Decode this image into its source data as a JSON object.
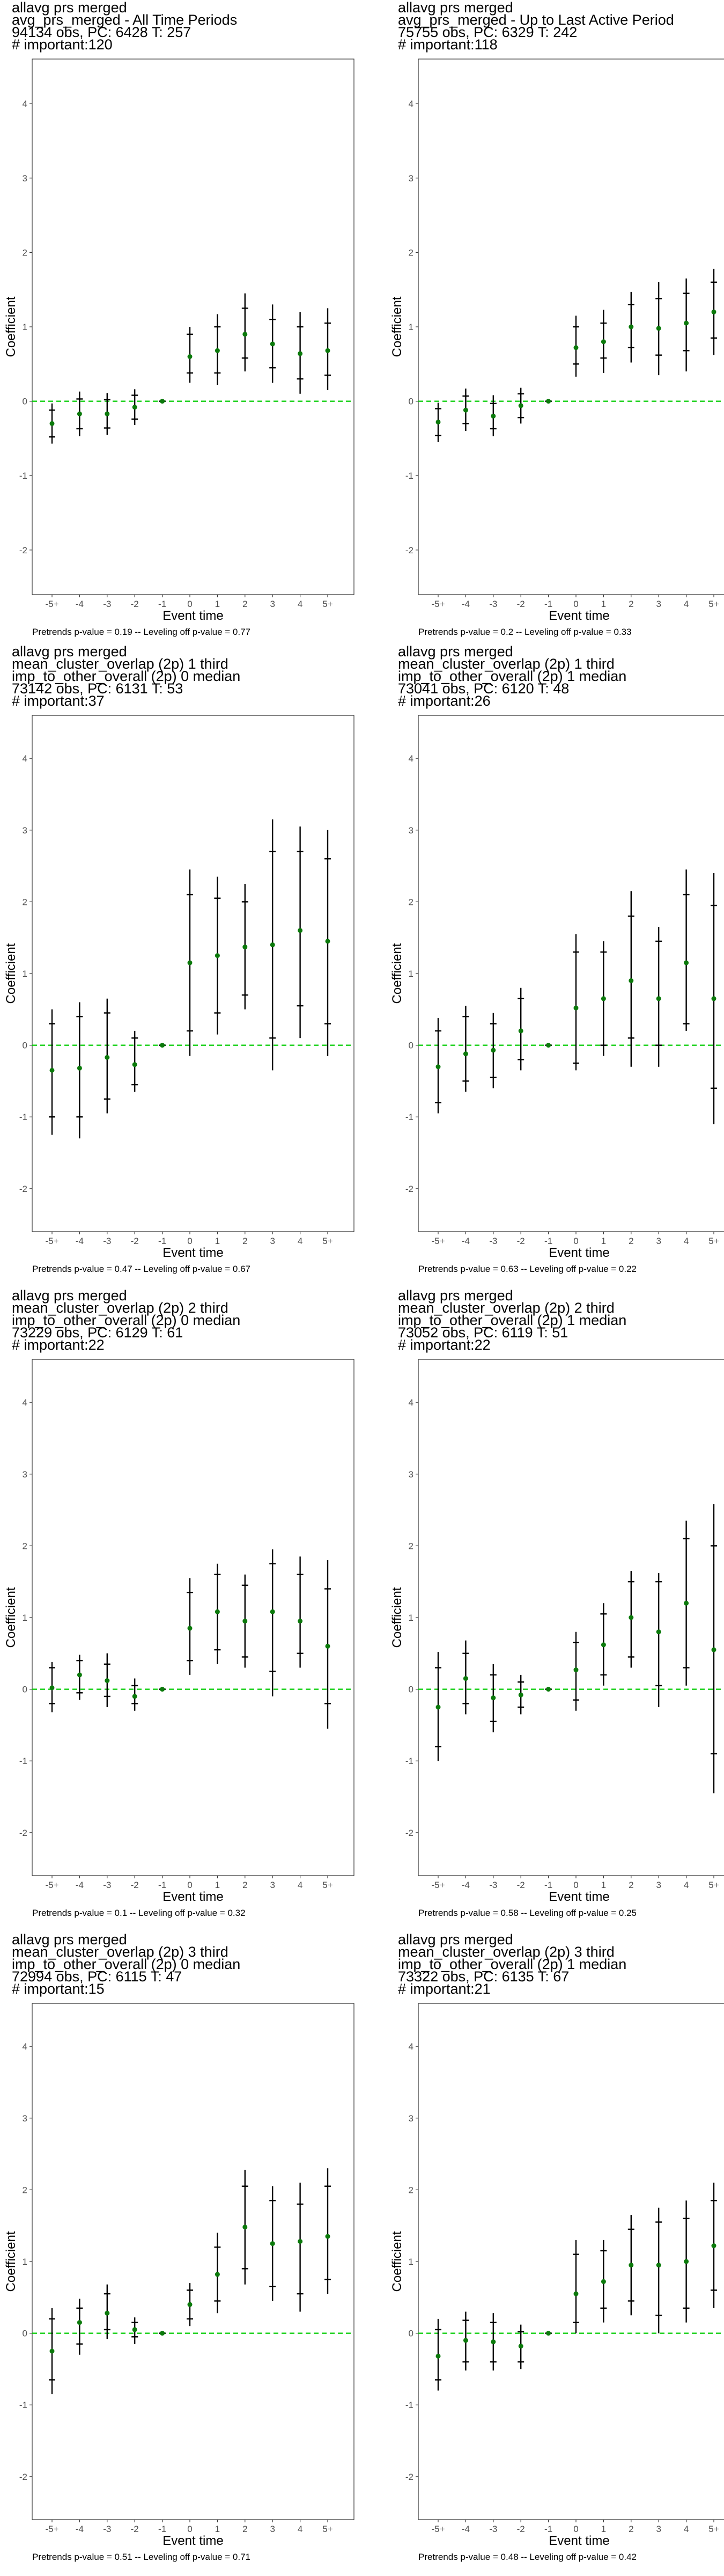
{
  "chart_data": [
    {
      "type": "scatter",
      "title": [
        "allavg prs merged",
        "avg_prs_merged - All Time Periods",
        "94134 obs, PC: 6428 T: 257",
        "# important:120"
      ],
      "caption": "Pretrends p-value = 0.19 -- Leveling off p-value = 0.77",
      "xlabel": "Event time",
      "ylabel": "Coefficient",
      "ylim": [
        -2.6,
        4.6
      ],
      "yticks": [
        -2,
        -1,
        0,
        1,
        2,
        3,
        4
      ],
      "categories": [
        "-5+",
        "-4",
        "-3",
        "-2",
        "-1",
        "0",
        "1",
        "2",
        "3",
        "4",
        "5+"
      ],
      "reference_line": 0,
      "reference_color": "#00cc00",
      "point_color": "#0b7a0b",
      "values": [
        -0.3,
        -0.17,
        -0.17,
        -0.08,
        0.0,
        0.6,
        0.68,
        0.9,
        0.77,
        0.64,
        0.68
      ],
      "ci_outer": [
        [
          -0.57,
          -0.03
        ],
        [
          -0.47,
          0.13
        ],
        [
          -0.45,
          0.11
        ],
        [
          -0.32,
          0.16
        ],
        [
          0,
          0
        ],
        [
          0.25,
          1.0
        ],
        [
          0.22,
          1.17
        ],
        [
          0.4,
          1.45
        ],
        [
          0.25,
          1.3
        ],
        [
          0.1,
          1.2
        ],
        [
          0.15,
          1.25
        ]
      ],
      "ci_inner": [
        [
          -0.48,
          -0.12
        ],
        [
          -0.37,
          0.03
        ],
        [
          -0.36,
          0.02
        ],
        [
          -0.24,
          0.08
        ],
        [
          0,
          0
        ],
        [
          0.38,
          0.9
        ],
        [
          0.38,
          1.0
        ],
        [
          0.58,
          1.25
        ],
        [
          0.45,
          1.1
        ],
        [
          0.3,
          1.0
        ],
        [
          0.35,
          1.05
        ]
      ]
    },
    {
      "type": "scatter",
      "title": [
        "allavg prs merged",
        "avg_prs_merged - Up to Last Active Period",
        "75755 obs, PC: 6329 T: 242",
        "# important:118"
      ],
      "caption": "Pretrends p-value = 0.2 -- Leveling off p-value = 0.33",
      "xlabel": "Event time",
      "ylabel": "Coefficient",
      "ylim": [
        -2.6,
        4.6
      ],
      "yticks": [
        -2,
        -1,
        0,
        1,
        2,
        3,
        4
      ],
      "categories": [
        "-5+",
        "-4",
        "-3",
        "-2",
        "-1",
        "0",
        "1",
        "2",
        "3",
        "4",
        "5+"
      ],
      "reference_line": 0,
      "reference_color": "#00cc00",
      "point_color": "#0b7a0b",
      "values": [
        -0.28,
        -0.12,
        -0.2,
        -0.06,
        0.0,
        0.72,
        0.8,
        1.0,
        0.98,
        1.05,
        1.2
      ],
      "ci_outer": [
        [
          -0.55,
          -0.02
        ],
        [
          -0.4,
          0.17
        ],
        [
          -0.47,
          0.08
        ],
        [
          -0.3,
          0.18
        ],
        [
          0,
          0
        ],
        [
          0.33,
          1.15
        ],
        [
          0.38,
          1.23
        ],
        [
          0.52,
          1.47
        ],
        [
          0.35,
          1.6
        ],
        [
          0.4,
          1.65
        ],
        [
          0.62,
          1.78
        ]
      ],
      "ci_inner": [
        [
          -0.46,
          -0.1
        ],
        [
          -0.3,
          0.07
        ],
        [
          -0.37,
          -0.03
        ],
        [
          -0.22,
          0.1
        ],
        [
          0,
          0
        ],
        [
          0.5,
          1.0
        ],
        [
          0.58,
          1.05
        ],
        [
          0.72,
          1.3
        ],
        [
          0.62,
          1.38
        ],
        [
          0.68,
          1.45
        ],
        [
          0.85,
          1.6
        ]
      ]
    },
    {
      "type": "scatter",
      "title": [
        "allavg prs merged",
        "mean_cluster_overlap (2p) 1 third",
        "imp_to_other_overall (2p) 0 median",
        "73142 obs, PC: 6131 T: 53",
        "# important:37"
      ],
      "caption": "Pretrends p-value = 0.47 -- Leveling off p-value = 0.67",
      "xlabel": "Event time",
      "ylabel": "Coefficient",
      "ylim": [
        -2.6,
        4.6
      ],
      "yticks": [
        -2,
        -1,
        0,
        1,
        2,
        3,
        4
      ],
      "categories": [
        "-5+",
        "-4",
        "-3",
        "-2",
        "-1",
        "0",
        "1",
        "2",
        "3",
        "4",
        "5+"
      ],
      "reference_line": 0,
      "reference_color": "#00cc00",
      "point_color": "#0b7a0b",
      "values": [
        -0.35,
        -0.32,
        -0.17,
        -0.27,
        0.0,
        1.15,
        1.25,
        1.37,
        1.4,
        1.6,
        1.45
      ],
      "ci_outer": [
        [
          -1.25,
          0.5
        ],
        [
          -1.3,
          0.6
        ],
        [
          -0.95,
          0.65
        ],
        [
          -0.65,
          0.2
        ],
        [
          0,
          0
        ],
        [
          -0.15,
          2.45
        ],
        [
          0.15,
          2.35
        ],
        [
          0.5,
          2.25
        ],
        [
          -0.35,
          3.15
        ],
        [
          0.1,
          3.05
        ],
        [
          -0.15,
          3.0
        ]
      ],
      "ci_inner": [
        [
          -1.0,
          0.3
        ],
        [
          -1.0,
          0.4
        ],
        [
          -0.75,
          0.45
        ],
        [
          -0.55,
          0.1
        ],
        [
          0,
          0
        ],
        [
          0.2,
          2.1
        ],
        [
          0.45,
          2.05
        ],
        [
          0.7,
          2.0
        ],
        [
          0.1,
          2.7
        ],
        [
          0.55,
          2.7
        ],
        [
          0.3,
          2.6
        ]
      ]
    },
    {
      "type": "scatter",
      "title": [
        "allavg prs merged",
        "mean_cluster_overlap (2p) 1 third",
        "imp_to_other_overall (2p) 1 median",
        "73041 obs, PC: 6120 T: 48",
        "# important:26"
      ],
      "caption": "Pretrends p-value = 0.63 -- Leveling off p-value = 0.22",
      "xlabel": "Event time",
      "ylabel": "Coefficient",
      "ylim": [
        -2.6,
        4.6
      ],
      "yticks": [
        -2,
        -1,
        0,
        1,
        2,
        3,
        4
      ],
      "categories": [
        "-5+",
        "-4",
        "-3",
        "-2",
        "-1",
        "0",
        "1",
        "2",
        "3",
        "4",
        "5+"
      ],
      "reference_line": 0,
      "reference_color": "#00cc00",
      "point_color": "#0b7a0b",
      "values": [
        -0.3,
        -0.12,
        -0.07,
        0.2,
        0.0,
        0.52,
        0.65,
        0.9,
        0.65,
        1.15,
        0.65
      ],
      "ci_outer": [
        [
          -0.95,
          0.38
        ],
        [
          -0.65,
          0.55
        ],
        [
          -0.6,
          0.45
        ],
        [
          -0.35,
          0.8
        ],
        [
          0,
          0
        ],
        [
          -0.35,
          1.55
        ],
        [
          -0.15,
          1.45
        ],
        [
          -0.3,
          2.15
        ],
        [
          -0.3,
          1.65
        ],
        [
          0.2,
          2.45
        ],
        [
          -1.1,
          2.4
        ]
      ],
      "ci_inner": [
        [
          -0.8,
          0.2
        ],
        [
          -0.5,
          0.4
        ],
        [
          -0.45,
          0.3
        ],
        [
          -0.2,
          0.65
        ],
        [
          0,
          0
        ],
        [
          -0.25,
          1.3
        ],
        [
          0.0,
          1.3
        ],
        [
          0.1,
          1.8
        ],
        [
          0.0,
          1.45
        ],
        [
          0.3,
          2.1
        ],
        [
          -0.6,
          1.95
        ]
      ]
    },
    {
      "type": "scatter",
      "title": [
        "allavg prs merged",
        "mean_cluster_overlap (2p) 2 third",
        "imp_to_other_overall (2p) 0 median",
        "73229 obs, PC: 6129 T: 61",
        "# important:22"
      ],
      "caption": "Pretrends p-value = 0.1 -- Leveling off p-value = 0.32",
      "xlabel": "Event time",
      "ylabel": "Coefficient",
      "ylim": [
        -2.6,
        4.6
      ],
      "yticks": [
        -2,
        -1,
        0,
        1,
        2,
        3,
        4
      ],
      "categories": [
        "-5+",
        "-4",
        "-3",
        "-2",
        "-1",
        "0",
        "1",
        "2",
        "3",
        "4",
        "5+"
      ],
      "reference_line": 0,
      "reference_color": "#00cc00",
      "point_color": "#0b7a0b",
      "values": [
        0.02,
        0.2,
        0.12,
        -0.1,
        0.0,
        0.85,
        1.08,
        0.95,
        1.08,
        0.95,
        0.6
      ],
      "ci_outer": [
        [
          -0.32,
          0.38
        ],
        [
          -0.15,
          0.48
        ],
        [
          -0.25,
          0.5
        ],
        [
          -0.3,
          0.15
        ],
        [
          0,
          0
        ],
        [
          0.2,
          1.55
        ],
        [
          0.35,
          1.75
        ],
        [
          0.3,
          1.6
        ],
        [
          -0.1,
          1.95
        ],
        [
          0.3,
          1.85
        ],
        [
          -0.55,
          1.8
        ]
      ],
      "ci_inner": [
        [
          -0.2,
          0.3
        ],
        [
          -0.05,
          0.4
        ],
        [
          -0.1,
          0.35
        ],
        [
          -0.2,
          0.05
        ],
        [
          0,
          0
        ],
        [
          0.4,
          1.35
        ],
        [
          0.55,
          1.6
        ],
        [
          0.45,
          1.45
        ],
        [
          0.25,
          1.75
        ],
        [
          0.5,
          1.6
        ],
        [
          -0.2,
          1.4
        ]
      ]
    },
    {
      "type": "scatter",
      "title": [
        "allavg prs merged",
        "mean_cluster_overlap (2p) 2 third",
        "imp_to_other_overall (2p) 1 median",
        "73052 obs, PC: 6119 T: 51",
        "# important:22"
      ],
      "caption": "Pretrends p-value = 0.58 -- Leveling off p-value = 0.25",
      "xlabel": "Event time",
      "ylabel": "Coefficient",
      "ylim": [
        -2.6,
        4.6
      ],
      "yticks": [
        -2,
        -1,
        0,
        1,
        2,
        3,
        4
      ],
      "categories": [
        "-5+",
        "-4",
        "-3",
        "-2",
        "-1",
        "0",
        "1",
        "2",
        "3",
        "4",
        "5+"
      ],
      "reference_line": 0,
      "reference_color": "#00cc00",
      "point_color": "#0b7a0b",
      "values": [
        -0.25,
        0.15,
        -0.12,
        -0.08,
        0.0,
        0.27,
        0.62,
        1.0,
        0.8,
        1.2,
        0.55
      ],
      "ci_outer": [
        [
          -1.0,
          0.52
        ],
        [
          -0.35,
          0.68
        ],
        [
          -0.6,
          0.35
        ],
        [
          -0.35,
          0.2
        ],
        [
          0,
          0
        ],
        [
          -0.3,
          0.8
        ],
        [
          0.05,
          1.2
        ],
        [
          0.3,
          1.65
        ],
        [
          -0.25,
          1.62
        ],
        [
          0.05,
          2.35
        ],
        [
          -1.45,
          2.58
        ]
      ],
      "ci_inner": [
        [
          -0.8,
          0.3
        ],
        [
          -0.2,
          0.5
        ],
        [
          -0.45,
          0.2
        ],
        [
          -0.25,
          0.1
        ],
        [
          0,
          0
        ],
        [
          -0.15,
          0.65
        ],
        [
          0.2,
          1.05
        ],
        [
          0.45,
          1.5
        ],
        [
          0.05,
          1.5
        ],
        [
          0.3,
          2.1
        ],
        [
          -0.9,
          2.0
        ]
      ]
    },
    {
      "type": "scatter",
      "title": [
        "allavg prs merged",
        "mean_cluster_overlap (2p) 3 third",
        "imp_to_other_overall (2p) 0 median",
        "72994 obs, PC: 6115 T: 47",
        "# important:15"
      ],
      "caption": "Pretrends p-value = 0.51 -- Leveling off p-value = 0.71",
      "xlabel": "Event time",
      "ylabel": "Coefficient",
      "ylim": [
        -2.6,
        4.6
      ],
      "yticks": [
        -2,
        -1,
        0,
        1,
        2,
        3,
        4
      ],
      "categories": [
        "-5+",
        "-4",
        "-3",
        "-2",
        "-1",
        "0",
        "1",
        "2",
        "3",
        "4",
        "5+"
      ],
      "reference_line": 0,
      "reference_color": "#00cc00",
      "point_color": "#0b7a0b",
      "values": [
        -0.25,
        0.15,
        0.28,
        0.05,
        0.0,
        0.4,
        0.82,
        1.48,
        1.25,
        1.28,
        1.35
      ],
      "ci_outer": [
        [
          -0.85,
          0.35
        ],
        [
          -0.3,
          0.48
        ],
        [
          -0.08,
          0.68
        ],
        [
          -0.15,
          0.22
        ],
        [
          0,
          0
        ],
        [
          0.1,
          0.7
        ],
        [
          0.28,
          1.4
        ],
        [
          0.68,
          2.28
        ],
        [
          0.45,
          2.05
        ],
        [
          0.3,
          2.1
        ],
        [
          0.55,
          2.3
        ]
      ],
      "ci_inner": [
        [
          -0.65,
          0.2
        ],
        [
          -0.15,
          0.35
        ],
        [
          0.05,
          0.55
        ],
        [
          -0.05,
          0.15
        ],
        [
          0,
          0
        ],
        [
          0.2,
          0.6
        ],
        [
          0.45,
          1.2
        ],
        [
          0.9,
          2.05
        ],
        [
          0.65,
          1.85
        ],
        [
          0.55,
          1.8
        ],
        [
          0.75,
          2.05
        ]
      ]
    },
    {
      "type": "scatter",
      "title": [
        "allavg prs merged",
        "mean_cluster_overlap (2p) 3 third",
        "imp_to_other_overall (2p) 1 median",
        "73322 obs, PC: 6135 T: 67",
        "# important:21"
      ],
      "caption": "Pretrends p-value = 0.48 -- Leveling off p-value = 0.42",
      "xlabel": "Event time",
      "ylabel": "Coefficient",
      "ylim": [
        -2.6,
        4.6
      ],
      "yticks": [
        -2,
        -1,
        0,
        1,
        2,
        3,
        4
      ],
      "categories": [
        "-5+",
        "-4",
        "-3",
        "-2",
        "-1",
        "0",
        "1",
        "2",
        "3",
        "4",
        "5+"
      ],
      "reference_line": 0,
      "reference_color": "#00cc00",
      "point_color": "#0b7a0b",
      "values": [
        -0.32,
        -0.1,
        -0.12,
        -0.18,
        0.0,
        0.55,
        0.72,
        0.95,
        0.95,
        1.0,
        1.22
      ],
      "ci_outer": [
        [
          -0.8,
          0.2
        ],
        [
          -0.52,
          0.3
        ],
        [
          -0.52,
          0.28
        ],
        [
          -0.5,
          0.12
        ],
        [
          0,
          0
        ],
        [
          0.0,
          1.3
        ],
        [
          0.15,
          1.3
        ],
        [
          0.25,
          1.65
        ],
        [
          0.0,
          1.75
        ],
        [
          0.15,
          1.85
        ],
        [
          0.35,
          2.1
        ]
      ],
      "ci_inner": [
        [
          -0.65,
          0.05
        ],
        [
          -0.4,
          0.18
        ],
        [
          -0.4,
          0.15
        ],
        [
          -0.4,
          0.02
        ],
        [
          0,
          0
        ],
        [
          0.15,
          1.1
        ],
        [
          0.35,
          1.15
        ],
        [
          0.45,
          1.45
        ],
        [
          0.25,
          1.55
        ],
        [
          0.35,
          1.6
        ],
        [
          0.6,
          1.85
        ]
      ]
    }
  ]
}
